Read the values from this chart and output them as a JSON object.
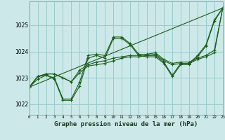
{
  "background_color": "#cce8e8",
  "grid_color": "#99cccc",
  "line_color": "#1a5c1a",
  "xlabel": "Graphe pression niveau de la mer (hPa)",
  "xlabel_fontsize": 6.5,
  "ylabel_values": [
    1022,
    1023,
    1024,
    1025
  ],
  "xlim": [
    0,
    23
  ],
  "ylim": [
    1021.6,
    1025.9
  ],
  "x_ticks": [
    0,
    1,
    2,
    3,
    4,
    5,
    6,
    7,
    8,
    9,
    10,
    11,
    12,
    13,
    14,
    15,
    16,
    17,
    18,
    19,
    20,
    21,
    22,
    23
  ],
  "series": [
    [
      1022.65,
      1022.95,
      1023.1,
      1023.0,
      1022.2,
      1022.2,
      1022.85,
      1023.85,
      1023.9,
      1023.85,
      1024.55,
      1024.55,
      1024.3,
      1023.9,
      1023.85,
      1023.85,
      1023.6,
      1023.1,
      1023.55,
      1023.55,
      1023.85,
      1024.25,
      1025.2,
      1025.65
    ],
    [
      1022.65,
      1023.05,
      1023.15,
      1023.15,
      1023.0,
      1022.85,
      1023.3,
      1023.5,
      1023.6,
      1023.65,
      1023.75,
      1023.8,
      1023.85,
      1023.85,
      1023.9,
      1023.95,
      1023.7,
      1023.55,
      1023.6,
      1023.6,
      1023.75,
      1023.85,
      1024.05,
      1025.65
    ],
    [
      1022.65,
      1023.05,
      1023.15,
      1023.15,
      1023.0,
      1022.85,
      1023.2,
      1023.45,
      1023.5,
      1023.55,
      1023.65,
      1023.75,
      1023.8,
      1023.8,
      1023.85,
      1023.9,
      1023.65,
      1023.5,
      1023.55,
      1023.55,
      1023.7,
      1023.8,
      1023.95,
      1025.65
    ],
    [
      1022.65,
      1023.05,
      1023.1,
      1022.95,
      1022.15,
      1022.15,
      1022.7,
      1023.75,
      1023.85,
      1023.75,
      1024.5,
      1024.5,
      1024.25,
      1023.85,
      1023.8,
      1023.8,
      1023.55,
      1023.05,
      1023.5,
      1023.5,
      1023.8,
      1024.2,
      1025.15,
      1025.65
    ]
  ],
  "straight_line": [
    1022.65,
    1025.65
  ],
  "straight_line_x": [
    0,
    23
  ]
}
